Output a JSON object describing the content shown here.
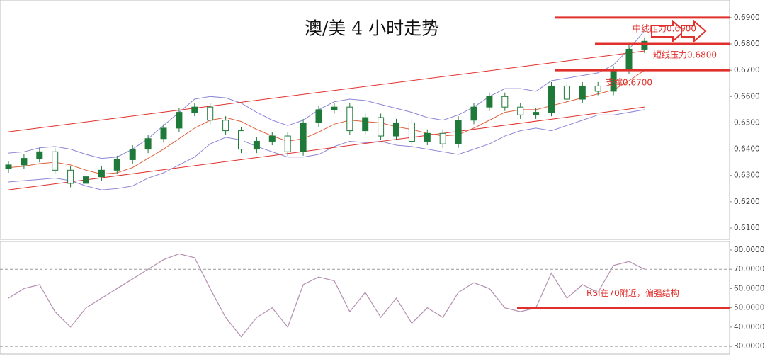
{
  "chart_data": [
    {
      "type": "candlestick",
      "title": "澳/美 4 小时走势",
      "open": [
        0.6325,
        0.634,
        0.6365,
        0.639,
        0.632,
        0.627,
        0.6295,
        0.632,
        0.636,
        0.64,
        0.644,
        0.648,
        0.654,
        0.656,
        0.651,
        0.647,
        0.64,
        0.643,
        0.645,
        0.639,
        0.65,
        0.655,
        0.656,
        0.647,
        0.652,
        0.645,
        0.65,
        0.643,
        0.646,
        0.642,
        0.651,
        0.656,
        0.66,
        0.656,
        0.653,
        0.654,
        0.664,
        0.659,
        0.664,
        0.662,
        0.67,
        0.678
      ],
      "high": [
        0.6355,
        0.638,
        0.6405,
        0.6405,
        0.6335,
        0.631,
        0.6335,
        0.6375,
        0.6415,
        0.6455,
        0.6495,
        0.6555,
        0.6575,
        0.6575,
        0.6525,
        0.6485,
        0.6445,
        0.6465,
        0.6465,
        0.6515,
        0.6565,
        0.6575,
        0.6575,
        0.6535,
        0.6535,
        0.6515,
        0.6515,
        0.6475,
        0.6475,
        0.6525,
        0.6575,
        0.6615,
        0.6615,
        0.6575,
        0.6555,
        0.6655,
        0.6655,
        0.6655,
        0.6655,
        0.6715,
        0.6795,
        0.6825
      ],
      "low": [
        0.631,
        0.6325,
        0.635,
        0.6305,
        0.6255,
        0.6255,
        0.628,
        0.6305,
        0.6345,
        0.6385,
        0.6425,
        0.6465,
        0.6525,
        0.6495,
        0.6455,
        0.6385,
        0.6385,
        0.6415,
        0.6375,
        0.6375,
        0.6485,
        0.6535,
        0.6455,
        0.6455,
        0.6435,
        0.6435,
        0.6415,
        0.6415,
        0.6405,
        0.6405,
        0.6495,
        0.6545,
        0.6545,
        0.6515,
        0.6515,
        0.6525,
        0.6575,
        0.6575,
        0.6605,
        0.6605,
        0.6685,
        0.6765
      ],
      "close": [
        0.634,
        0.6365,
        0.639,
        0.632,
        0.627,
        0.6295,
        0.632,
        0.636,
        0.64,
        0.644,
        0.648,
        0.654,
        0.656,
        0.651,
        0.647,
        0.64,
        0.643,
        0.645,
        0.639,
        0.65,
        0.655,
        0.656,
        0.647,
        0.652,
        0.645,
        0.65,
        0.643,
        0.646,
        0.642,
        0.651,
        0.656,
        0.66,
        0.656,
        0.653,
        0.654,
        0.664,
        0.659,
        0.664,
        0.662,
        0.67,
        0.678,
        0.681
      ],
      "up_color": "#1f7a3a",
      "down_color": "#ffffff",
      "bands": {
        "color": "#8c86d6",
        "mid_color": "#e0603c",
        "upper": [
          0.6385,
          0.639,
          0.6405,
          0.641,
          0.64,
          0.638,
          0.6365,
          0.637,
          0.64,
          0.644,
          0.649,
          0.654,
          0.659,
          0.66,
          0.6595,
          0.6575,
          0.654,
          0.651,
          0.649,
          0.651,
          0.655,
          0.658,
          0.659,
          0.6585,
          0.657,
          0.6555,
          0.654,
          0.652,
          0.651,
          0.653,
          0.656,
          0.66,
          0.663,
          0.663,
          0.662,
          0.666,
          0.667,
          0.668,
          0.669,
          0.672,
          0.678,
          0.685
        ],
        "mid": [
          0.633,
          0.6335,
          0.6345,
          0.635,
          0.634,
          0.632,
          0.6305,
          0.631,
          0.633,
          0.6365,
          0.64,
          0.644,
          0.648,
          0.651,
          0.652,
          0.6505,
          0.6475,
          0.645,
          0.643,
          0.644,
          0.6465,
          0.6495,
          0.651,
          0.6505,
          0.65,
          0.6485,
          0.6475,
          0.646,
          0.645,
          0.6455,
          0.648,
          0.651,
          0.654,
          0.655,
          0.655,
          0.6565,
          0.658,
          0.6595,
          0.661,
          0.6625,
          0.666,
          0.67
        ],
        "lower": [
          0.6275,
          0.628,
          0.6285,
          0.629,
          0.628,
          0.626,
          0.6245,
          0.625,
          0.626,
          0.629,
          0.631,
          0.634,
          0.637,
          0.642,
          0.6445,
          0.6435,
          0.641,
          0.639,
          0.637,
          0.637,
          0.638,
          0.641,
          0.643,
          0.6425,
          0.643,
          0.6415,
          0.641,
          0.64,
          0.639,
          0.638,
          0.64,
          0.642,
          0.645,
          0.647,
          0.648,
          0.647,
          0.649,
          0.651,
          0.653,
          0.653,
          0.654,
          0.655
        ]
      },
      "trendlines": [
        {
          "x": [
            0,
            41
          ],
          "values": [
            0.6466,
            0.6773
          ],
          "color": "#e0302c"
        },
        {
          "x": [
            0,
            41
          ],
          "values": [
            0.6245,
            0.656
          ],
          "color": "#e0302c"
        }
      ],
      "levels": [
        {
          "value": 0.69,
          "label": "中线压力0.6900"
        },
        {
          "value": 0.68,
          "label": "短线压力0.6800"
        },
        {
          "value": 0.67,
          "label": "支撑0.6700"
        }
      ],
      "level_color": "#e0302c",
      "ylim": [
        0.6057,
        0.6967
      ],
      "yticks": [
        {
          "value": 0.69,
          "label": "0.6900"
        },
        {
          "value": 0.68,
          "label": "0.6800"
        },
        {
          "value": 0.67,
          "label": "0.6700"
        },
        {
          "value": 0.66,
          "label": "0.6600"
        },
        {
          "value": 0.65,
          "label": "0.6500"
        },
        {
          "value": 0.64,
          "label": "0.6400"
        },
        {
          "value": 0.63,
          "label": "0.6300"
        },
        {
          "value": 0.62,
          "label": "0.6200"
        },
        {
          "value": 0.61,
          "label": "0.6100"
        }
      ]
    },
    {
      "type": "line",
      "values": [
        55,
        60,
        62,
        48,
        40,
        50,
        55,
        60,
        65,
        70,
        75,
        78,
        76,
        60,
        45,
        35,
        45,
        50,
        40,
        62,
        66,
        64,
        48,
        58,
        45,
        55,
        42,
        50,
        45,
        58,
        63,
        60,
        50,
        48,
        50,
        68,
        55,
        62,
        58,
        72,
        74,
        70
      ],
      "color": "#b48fb0",
      "reference_lines": [
        70,
        30
      ],
      "levels": [
        {
          "value": 50,
          "label": "RSI在70附近，偏强结构"
        }
      ],
      "level_color": "#e0302c",
      "ylim": [
        26,
        84.4
      ],
      "yticks": [
        {
          "value": 80,
          "label": "80.0000"
        },
        {
          "value": 70,
          "label": "70.0000"
        },
        {
          "value": 60,
          "label": "60.0000"
        },
        {
          "value": 50,
          "label": "50.0000"
        },
        {
          "value": 40,
          "label": "40.0000"
        },
        {
          "value": 30,
          "label": "30.0000"
        }
      ]
    }
  ]
}
